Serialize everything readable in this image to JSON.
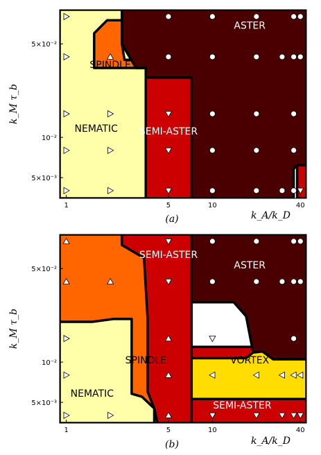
{
  "chart_data": [
    {
      "type": "phase-diagram",
      "panel_label": "(a)",
      "xlabel": "k_A/k_D",
      "ylabel": "k_M τ_b",
      "x_scale": "log",
      "y_scale": "log",
      "xlim": [
        0.9,
        44
      ],
      "ylim": [
        0.0035,
        0.09
      ],
      "x_ticks": [
        {
          "value": 1,
          "label": "1"
        },
        {
          "value": 5,
          "label": "5"
        },
        {
          "value": 10,
          "label": "10"
        },
        {
          "value": 40,
          "label": "40"
        }
      ],
      "y_ticks": [
        {
          "value": 0.005,
          "label": "5×10⁻³"
        },
        {
          "value": 0.01,
          "label": "10⁻²"
        },
        {
          "value": 0.05,
          "label": "5×10⁻²"
        }
      ],
      "regions": [
        {
          "name": "NEMATIC",
          "color": "#ffffaa",
          "label": "NEMATIC",
          "label_at": [
            1.6,
            0.011
          ],
          "label_color": "#000000",
          "polygon": [
            [
              0.9,
              0.0035
            ],
            [
              3.5,
              0.0035
            ],
            [
              3.5,
              0.033
            ],
            [
              3.0,
              0.033
            ],
            [
              2.4,
              0.05
            ],
            [
              2.4,
              0.09
            ],
            [
              0.9,
              0.09
            ]
          ]
        },
        {
          "name": "SPINDLE",
          "color": "#ff6600",
          "label": "SPINDLE",
          "label_at": [
            2.0,
            0.033
          ],
          "label_color": "#000000",
          "polygon": [
            [
              1.55,
              0.033
            ],
            [
              3.5,
              0.033
            ],
            [
              3.0,
              0.033
            ],
            [
              3.0,
              0.038
            ],
            [
              2.5,
              0.038
            ],
            [
              2.4,
              0.05
            ],
            [
              2.4,
              0.075
            ],
            [
              1.9,
              0.075
            ],
            [
              1.55,
              0.06
            ]
          ]
        },
        {
          "name": "SEMI-ASTER",
          "color": "#cc0000",
          "label": "SEMI-ASTER",
          "label_at": [
            5.0,
            0.0105
          ],
          "label_color": "#ffffff",
          "polygon": [
            [
              3.5,
              0.0035
            ],
            [
              7.2,
              0.0035
            ],
            [
              7.2,
              0.028
            ],
            [
              3.5,
              0.028
            ]
          ]
        },
        {
          "name": "SEMI-ASTER",
          "color": "#cc0000",
          "label": "",
          "label_at": [
            40,
            0.0045
          ],
          "label_color": "#ffffff",
          "polygon": [
            [
              38,
              0.0035
            ],
            [
              44,
              0.0035
            ],
            [
              44,
              0.0062
            ],
            [
              38,
              0.0062
            ]
          ]
        },
        {
          "name": "ASTER",
          "color": "#4a0000",
          "label": "ASTER",
          "label_at": [
            18,
            0.065
          ],
          "label_color": "#ffffff",
          "polygon": [
            [
              2.4,
              0.09
            ],
            [
              44,
              0.09
            ],
            [
              44,
              0.0062
            ],
            [
              38,
              0.0062
            ],
            [
              36,
              0.0058
            ],
            [
              36,
              0.0035
            ],
            [
              7.2,
              0.0035
            ],
            [
              7.2,
              0.028
            ],
            [
              3.5,
              0.028
            ],
            [
              3.5,
              0.033
            ],
            [
              3.0,
              0.033
            ],
            [
              2.4,
              0.05
            ]
          ]
        }
      ],
      "markers": [
        {
          "region": "NEMATIC",
          "shape": "triangle-right",
          "color": "#ffffff",
          "points": [
            [
              1,
              0.08
            ],
            [
              1,
              0.04
            ],
            [
              1,
              0.015
            ],
            [
              1,
              0.008
            ],
            [
              1,
              0.004
            ],
            [
              2,
              0.015
            ],
            [
              2,
              0.008
            ],
            [
              2,
              0.004
            ]
          ]
        },
        {
          "region": "SPINDLE",
          "shape": "triangle-up",
          "color": "#ffffff",
          "points": [
            [
              2,
              0.04
            ]
          ]
        },
        {
          "region": "SEMI-ASTER",
          "shape": "triangle-down",
          "color": "#ffffff",
          "points": [
            [
              5,
              0.015
            ],
            [
              5,
              0.008
            ],
            [
              5,
              0.004
            ],
            [
              40,
              0.004
            ]
          ]
        },
        {
          "region": "ASTER",
          "shape": "circle",
          "color": "#ffffff",
          "points": [
            [
              5,
              0.08
            ],
            [
              10,
              0.08
            ],
            [
              20,
              0.08
            ],
            [
              36,
              0.08
            ],
            [
              40,
              0.08
            ],
            [
              5,
              0.04
            ],
            [
              10,
              0.04
            ],
            [
              20,
              0.04
            ],
            [
              30,
              0.04
            ],
            [
              36,
              0.04
            ],
            [
              40,
              0.04
            ],
            [
              10,
              0.015
            ],
            [
              20,
              0.015
            ],
            [
              36,
              0.015
            ],
            [
              10,
              0.008
            ],
            [
              20,
              0.008
            ],
            [
              36,
              0.008
            ],
            [
              10,
              0.004
            ],
            [
              20,
              0.004
            ],
            [
              30,
              0.004
            ],
            [
              36,
              0.004
            ]
          ]
        }
      ]
    },
    {
      "type": "phase-diagram",
      "panel_label": "(b)",
      "xlabel": "k_A/k_D",
      "ylabel": "k_M τ_b",
      "x_scale": "log",
      "y_scale": "log",
      "xlim": [
        0.9,
        44
      ],
      "ylim": [
        0.0035,
        0.09
      ],
      "x_ticks": [
        {
          "value": 1,
          "label": "1"
        },
        {
          "value": 5,
          "label": "5"
        },
        {
          "value": 10,
          "label": "10"
        },
        {
          "value": 40,
          "label": "40"
        }
      ],
      "y_ticks": [
        {
          "value": 0.005,
          "label": "5×10⁻³"
        },
        {
          "value": 0.01,
          "label": "10⁻²"
        },
        {
          "value": 0.05,
          "label": "5×10⁻²"
        }
      ],
      "regions": [
        {
          "name": "SPINDLE",
          "color": "#ff6600",
          "label": "SPINDLE",
          "label_at": [
            3.5,
            0.0098
          ],
          "label_color": "#000000",
          "polygon": [
            [
              0.9,
              0.0035
            ],
            [
              7.2,
              0.0035
            ],
            [
              7.2,
              0.09
            ],
            [
              0.9,
              0.09
            ]
          ]
        },
        {
          "name": "NEMATIC",
          "color": "#ffffaa",
          "label": "NEMATIC",
          "label_at": [
            1.5,
            0.0055
          ],
          "label_color": "#000000",
          "polygon": [
            [
              0.9,
              0.0035
            ],
            [
              4.0,
              0.0035
            ],
            [
              4.0,
              0.0045
            ],
            [
              3.3,
              0.0055
            ],
            [
              2.8,
              0.0058
            ],
            [
              2.8,
              0.021
            ],
            [
              2.1,
              0.021
            ],
            [
              1.5,
              0.02
            ],
            [
              0.9,
              0.02
            ]
          ]
        },
        {
          "name": "SEMI-ASTER",
          "color": "#cc0000",
          "label": "SEMI-ASTER",
          "label_at": [
            5.0,
            0.06
          ],
          "label_color": "#ffffff",
          "polygon": [
            [
              2.4,
              0.09
            ],
            [
              7.2,
              0.09
            ],
            [
              7.2,
              0.0035
            ],
            [
              4.2,
              0.0035
            ],
            [
              4.0,
              0.0045
            ],
            [
              3.6,
              0.006
            ],
            [
              3.6,
              0.021
            ],
            [
              3.4,
              0.06
            ],
            [
              2.4,
              0.075
            ]
          ]
        },
        {
          "name": "SEMI-ASTER",
          "color": "#cc0000",
          "label": "SEMI-ASTER",
          "label_at": [
            16,
            0.0045
          ],
          "label_color": "#ffffff",
          "polygon": [
            [
              7.2,
              0.0035
            ],
            [
              44,
              0.0035
            ],
            [
              44,
              0.028
            ],
            [
              30,
              0.028
            ],
            [
              26,
              0.02
            ],
            [
              20,
              0.013
            ],
            [
              7.2,
              0.013
            ]
          ]
        },
        {
          "name": "ASTER",
          "color": "#4a0000",
          "label": "ASTER",
          "label_at": [
            18,
            0.05
          ],
          "label_color": "#ffffff",
          "polygon": [
            [
              7.2,
              0.09
            ],
            [
              44,
              0.09
            ],
            [
              44,
              0.0105
            ],
            [
              26,
              0.0105
            ],
            [
              22,
              0.012
            ],
            [
              19,
              0.0118
            ],
            [
              17,
              0.022
            ],
            [
              14,
              0.028
            ],
            [
              7.2,
              0.028
            ]
          ]
        },
        {
          "name": "VORTEX",
          "color": "#ffdd00",
          "label": "VORTEX",
          "label_at": [
            18,
            0.0098
          ],
          "label_color": "#000000",
          "polygon": [
            [
              7.2,
              0.0053
            ],
            [
              44,
              0.0053
            ],
            [
              44,
              0.0105
            ],
            [
              26,
              0.0105
            ],
            [
              22,
              0.012
            ],
            [
              19,
              0.0118
            ],
            [
              17,
              0.0107
            ],
            [
              7.2,
              0.0107
            ]
          ]
        }
      ],
      "markers": [
        {
          "region": "SPINDLE",
          "shape": "triangle-up",
          "color": "#ffffff",
          "points": [
            [
              1,
              0.08
            ],
            [
              1,
              0.04
            ],
            [
              2,
              0.04
            ],
            [
              5,
              0.015
            ],
            [
              5,
              0.008
            ],
            [
              5,
              0.004
            ]
          ]
        },
        {
          "region": "NEMATIC",
          "shape": "triangle-right",
          "color": "#ffffff",
          "points": [
            [
              1,
              0.015
            ],
            [
              1,
              0.008
            ],
            [
              1,
              0.004
            ],
            [
              2,
              0.004
            ]
          ]
        },
        {
          "region": "SEMI-ASTER",
          "shape": "triangle-down",
          "color": "#ffffff",
          "points": [
            [
              10,
              0.015
            ],
            [
              10,
              0.004
            ],
            [
              20,
              0.004
            ],
            [
              30,
              0.004
            ],
            [
              36,
              0.004
            ],
            [
              40,
              0.004
            ],
            [
              5,
              0.08
            ],
            [
              5,
              0.04
            ]
          ]
        },
        {
          "region": "VORTEX",
          "shape": "triangle-left",
          "color": "#ffffff",
          "points": [
            [
              10,
              0.008
            ],
            [
              20,
              0.008
            ],
            [
              30,
              0.008
            ],
            [
              36,
              0.008
            ],
            [
              40,
              0.008
            ]
          ]
        },
        {
          "region": "ASTER",
          "shape": "circle",
          "color": "#ffffff",
          "points": [
            [
              10,
              0.08
            ],
            [
              20,
              0.08
            ],
            [
              36,
              0.08
            ],
            [
              40,
              0.08
            ],
            [
              10,
              0.04
            ],
            [
              20,
              0.04
            ],
            [
              30,
              0.04
            ],
            [
              36,
              0.04
            ],
            [
              40,
              0.04
            ],
            [
              36,
              0.015
            ]
          ]
        }
      ]
    }
  ]
}
